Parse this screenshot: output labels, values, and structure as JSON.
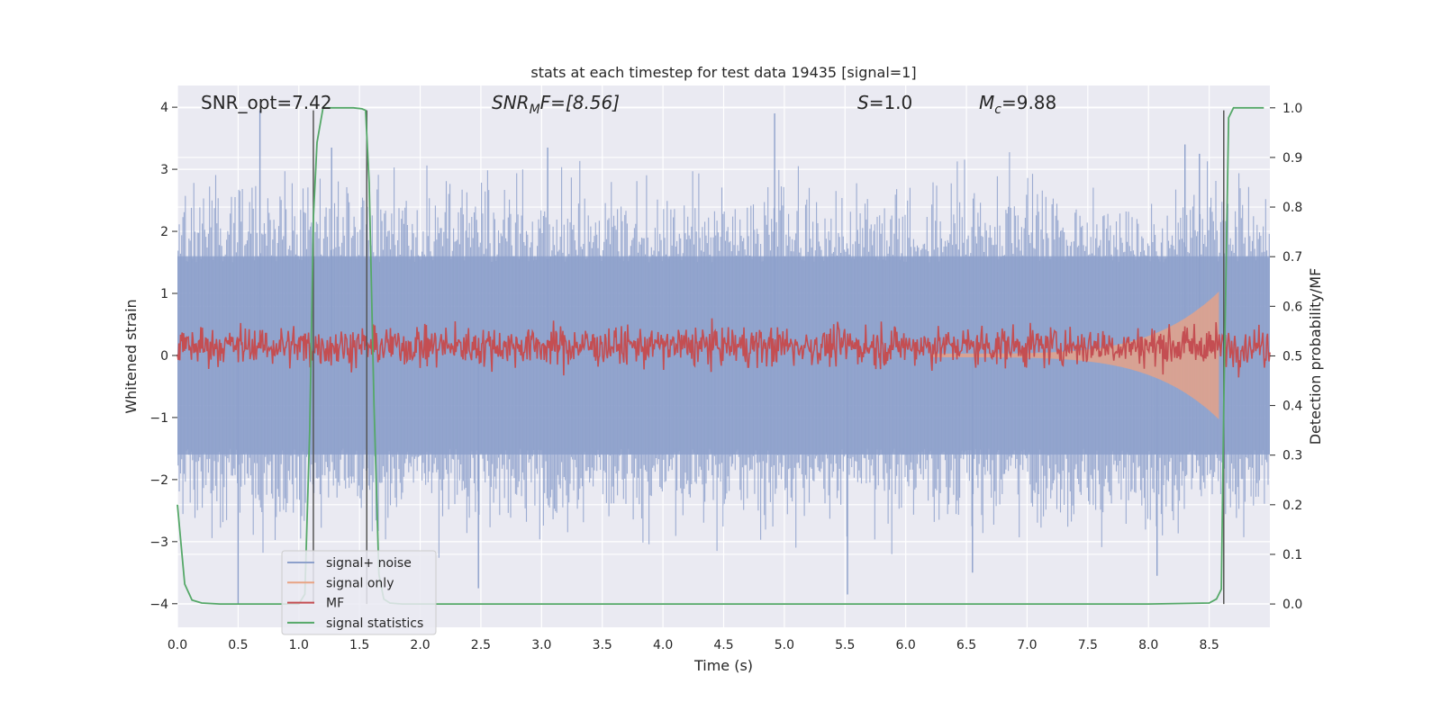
{
  "chart_data": {
    "type": "line",
    "title": "stats at each timestep for test data 19435 [signal=1]",
    "xlabel": "Time (s)",
    "ylabel_left": "Whitened strain",
    "ylabel_right": "Detection probability/MF",
    "xlim": [
      0.0,
      9.0
    ],
    "ylim_left": [
      -4.38,
      4.35
    ],
    "ylim_right": [
      -0.047,
      1.045
    ],
    "x_ticks": [
      "0.0",
      "0.5",
      "1.0",
      "1.5",
      "2.0",
      "2.5",
      "3.0",
      "3.5",
      "4.0",
      "4.5",
      "5.0",
      "5.5",
      "6.0",
      "6.5",
      "7.0",
      "7.5",
      "8.0",
      "8.5"
    ],
    "x_tick_values": [
      0.0,
      0.5,
      1.0,
      1.5,
      2.0,
      2.5,
      3.0,
      3.5,
      4.0,
      4.5,
      5.0,
      5.5,
      6.0,
      6.5,
      7.0,
      7.5,
      8.0,
      8.5
    ],
    "y_left_ticks": [
      "4",
      "3",
      "2",
      "1",
      "0",
      "−1",
      "−2",
      "−3",
      "−4"
    ],
    "y_left_tick_values": [
      4,
      3,
      2,
      1,
      0,
      -1,
      -2,
      -3,
      -4
    ],
    "y_right_ticks": [
      "1.0",
      "0.9",
      "0.8",
      "0.7",
      "0.6",
      "0.5",
      "0.4",
      "0.3",
      "0.2",
      "0.1",
      "0.0"
    ],
    "y_right_tick_values": [
      1.0,
      0.9,
      0.8,
      0.7,
      0.6,
      0.5,
      0.4,
      0.3,
      0.2,
      0.1,
      0.0
    ],
    "annotations": [
      {
        "name": "snr-opt",
        "text": "SNR_opt=7.42"
      },
      {
        "name": "snr-mf",
        "text": "SNR_MF=[8.56]",
        "base": "SNR",
        "sub": "M",
        "rest": "F=[8.56]"
      },
      {
        "name": "s-value",
        "text": "S=1.0",
        "base": "S",
        "rest": "=1.0"
      },
      {
        "name": "mc-value",
        "text": "M_c=9.88",
        "base": "M",
        "sub": "c",
        "rest": "=9.88"
      }
    ],
    "legend": {
      "placement": "lower-left",
      "entries": [
        {
          "label": "signal+ noise",
          "color": "#8da0cb"
        },
        {
          "label": "signal only",
          "color": "#e8a384"
        },
        {
          "label": "MF",
          "color": "#c44e52"
        },
        {
          "label": "signal statistics",
          "color": "#55a868"
        }
      ]
    },
    "series": [
      {
        "name": "signal+ noise",
        "axis": "left",
        "description": "whitened strain noise, approx amplitude envelope",
        "envelope_core": [
          -1.6,
          1.6
        ],
        "peak_extremes": [
          -3.85,
          3.95
        ]
      },
      {
        "name": "signal only",
        "axis": "left",
        "chirp_start_x": 6.2,
        "chirp_end_x": 8.58,
        "peak_amplitude": 1.0
      },
      {
        "name": "MF",
        "axis": "right",
        "baseline": 0.52,
        "spread": 0.035
      },
      {
        "name": "signal statistics",
        "axis": "right",
        "x": [
          0.0,
          0.06,
          0.12,
          0.2,
          0.35,
          0.5,
          0.8,
          1.0,
          1.05,
          1.09,
          1.12,
          1.15,
          1.2,
          1.3,
          1.45,
          1.52,
          1.55,
          1.58,
          1.62,
          1.66,
          1.7,
          1.75,
          1.85,
          2.0,
          3.0,
          4.0,
          5.0,
          6.0,
          7.0,
          8.0,
          8.5,
          8.56,
          8.6,
          8.62,
          8.66,
          8.7,
          8.8,
          8.95
        ],
        "y": [
          0.2,
          0.04,
          0.008,
          0.002,
          0.0,
          0.0,
          0.0,
          0.0,
          0.02,
          0.35,
          0.78,
          0.93,
          1.0,
          1.0,
          1.0,
          0.998,
          0.995,
          0.85,
          0.4,
          0.06,
          0.01,
          0.002,
          0.0,
          0.0,
          0.0,
          0.0,
          0.0,
          0.0,
          0.0,
          0.0,
          0.002,
          0.01,
          0.03,
          0.4,
          0.98,
          1.0,
          1.0,
          1.0
        ]
      }
    ],
    "vertical_markers_x": [
      1.12,
      1.56,
      8.62
    ],
    "colors": {
      "plot_bg": "#eaeaf2",
      "grid": "#ffffff",
      "noise": "#8da0cb",
      "signal": "#e8a384",
      "mf": "#c44e52",
      "stat": "#55a868",
      "marker": "#555555"
    }
  }
}
